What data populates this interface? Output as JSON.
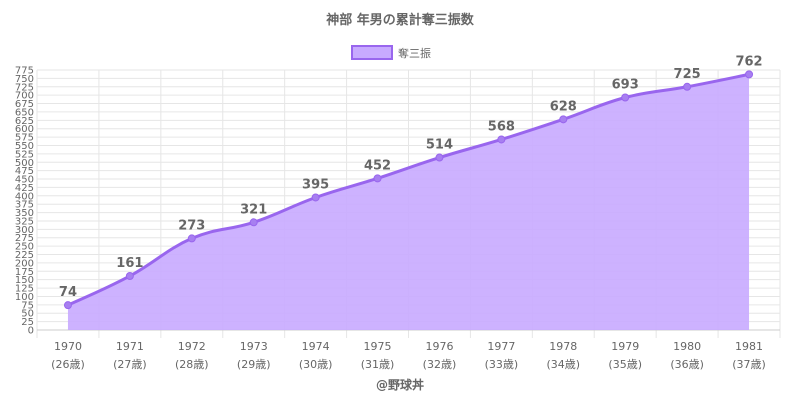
{
  "chart_data": {
    "type": "area",
    "title": "神部 年男の累計奪三振数",
    "legend": {
      "label": "奪三振",
      "position": "top-center"
    },
    "categories": [
      "1970",
      "1971",
      "1972",
      "1973",
      "1974",
      "1975",
      "1976",
      "1977",
      "1978",
      "1979",
      "1980",
      "1981"
    ],
    "ages": [
      "(26歳)",
      "(27歳)",
      "(28歳)",
      "(29歳)",
      "(30歳)",
      "(31歳)",
      "(32歳)",
      "(33歳)",
      "(34歳)",
      "(35歳)",
      "(36歳)",
      "(37歳)"
    ],
    "series": [
      {
        "name": "奪三振",
        "values": [
          74,
          161,
          273,
          321,
          395,
          452,
          514,
          568,
          628,
          693,
          725,
          762
        ]
      }
    ],
    "ylim": [
      0,
      775
    ],
    "ytick_step": 25,
    "grid": true,
    "colors": {
      "line": "#9966ee",
      "fill": "#c8aaff",
      "point": "#a77ff0",
      "grid": "#e6e6e6",
      "text": "#666666"
    }
  },
  "credit": "@野球丼"
}
